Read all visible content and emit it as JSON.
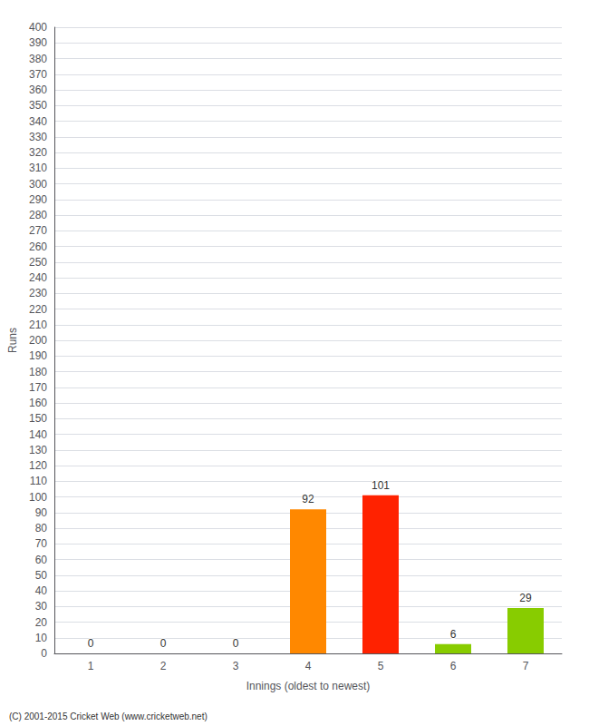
{
  "chart_data": {
    "type": "bar",
    "xlabel": "Innings (oldest to newest)",
    "ylabel": "Runs",
    "categories": [
      "1",
      "2",
      "3",
      "4",
      "5",
      "6",
      "7"
    ],
    "values": [
      0,
      0,
      0,
      92,
      101,
      6,
      29
    ],
    "colors": [
      "#0000cc",
      "#0000cc",
      "#0000cc",
      "#ff8800",
      "#ff2200",
      "#88cc00",
      "#88cc00"
    ],
    "ylim": [
      0,
      400
    ],
    "yticks": [
      0,
      10,
      20,
      30,
      40,
      50,
      60,
      70,
      80,
      90,
      100,
      110,
      120,
      130,
      140,
      150,
      160,
      170,
      180,
      190,
      200,
      210,
      220,
      230,
      240,
      250,
      260,
      270,
      280,
      290,
      300,
      310,
      320,
      330,
      340,
      350,
      360,
      370,
      380,
      390,
      400
    ],
    "grid": true,
    "data_labels": true,
    "annotations": [
      "(C) 2001-2015 Cricket Web (www.cricketweb.net)"
    ]
  }
}
